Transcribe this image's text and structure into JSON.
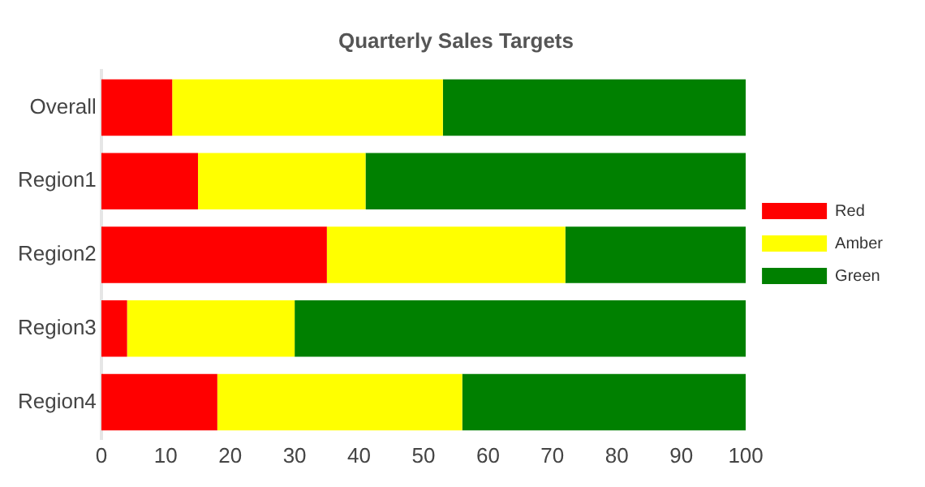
{
  "chart_data": {
    "type": "bar",
    "orientation": "horizontal",
    "stacked": true,
    "title": "Quarterly Sales Targets",
    "categories": [
      "Overall",
      "Region1",
      "Region2",
      "Region3",
      "Region4"
    ],
    "series": [
      {
        "name": "Red",
        "color": "#ff0000",
        "values": [
          11,
          15,
          35,
          4,
          18
        ]
      },
      {
        "name": "Amber",
        "color": "#ffff00",
        "values": [
          42,
          26,
          37,
          26,
          38
        ]
      },
      {
        "name": "Green",
        "color": "#008000",
        "values": [
          47,
          59,
          28,
          70,
          44
        ]
      }
    ],
    "xlim": [
      0,
      100
    ],
    "xticks": [
      0,
      10,
      20,
      30,
      40,
      50,
      60,
      70,
      80,
      90,
      100
    ],
    "grid": false,
    "legend": "right"
  }
}
